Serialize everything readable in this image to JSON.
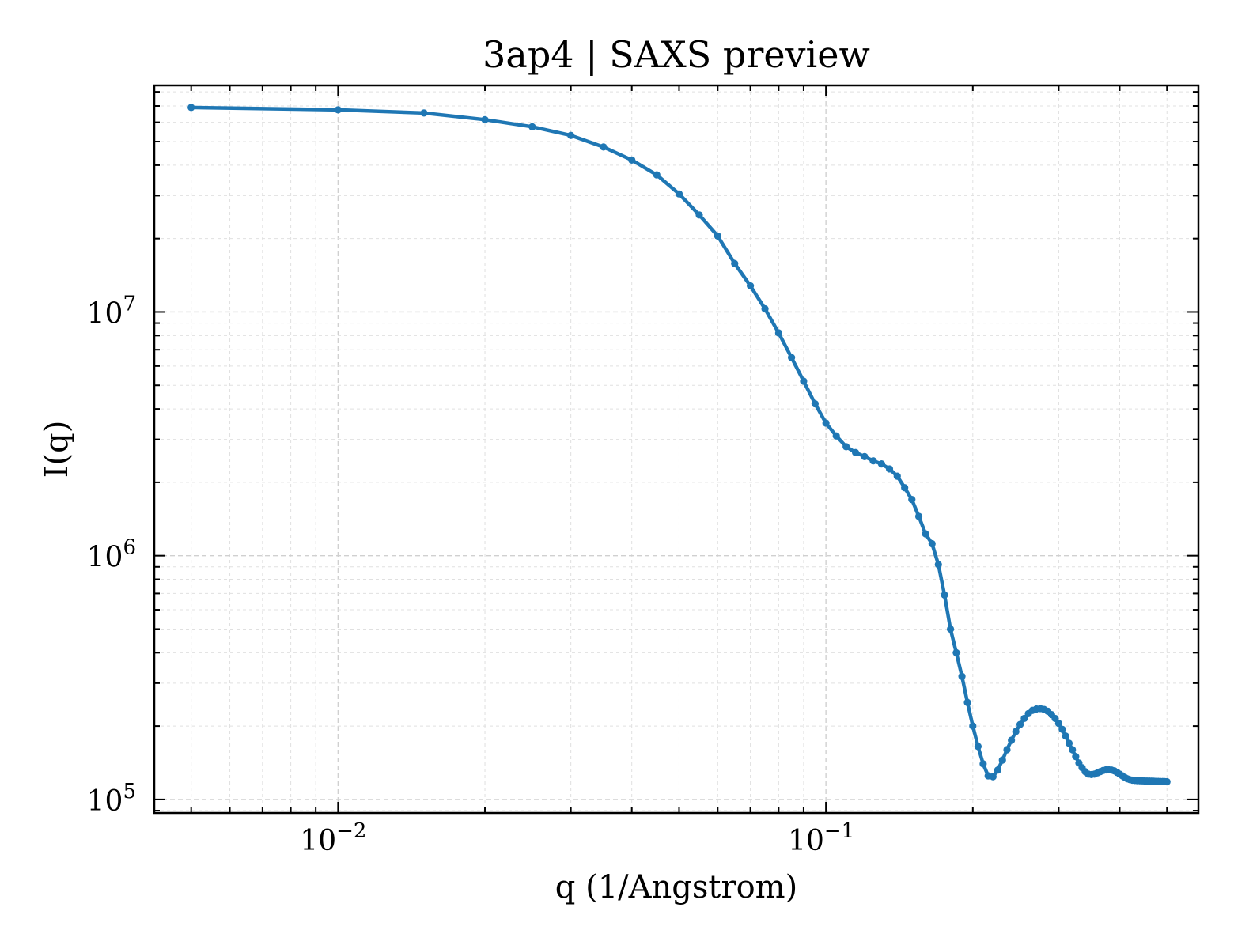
{
  "chart_data": {
    "type": "line",
    "title": "3ap4 | SAXS preview",
    "xlabel": "q (1/Angstrom)",
    "ylabel": "I(q)",
    "xscale": "log",
    "yscale": "log",
    "xlim": [
      0.0042,
      0.58
    ],
    "ylim": [
      88000,
      85000000
    ],
    "grid": true,
    "x_ticks": [
      {
        "value": 0.01,
        "base": "10",
        "exp": "−2"
      },
      {
        "value": 0.1,
        "base": "10",
        "exp": "−1"
      }
    ],
    "y_ticks": [
      {
        "value": 100000,
        "base": "10",
        "exp": "5"
      },
      {
        "value": 1000000,
        "base": "10",
        "exp": "6"
      },
      {
        "value": 10000000,
        "base": "10",
        "exp": "7"
      }
    ],
    "series": [
      {
        "color": "#1f77b4",
        "marker": "circle",
        "x": [
          0.005,
          0.01,
          0.015,
          0.02,
          0.025,
          0.03,
          0.035,
          0.04,
          0.045,
          0.05,
          0.055,
          0.06,
          0.065,
          0.07,
          0.075,
          0.08,
          0.085,
          0.09,
          0.095,
          0.1,
          0.105,
          0.11,
          0.115,
          0.12,
          0.125,
          0.13,
          0.135,
          0.14,
          0.145,
          0.15,
          0.155,
          0.16,
          0.165,
          0.17,
          0.175,
          0.18,
          0.185,
          0.19,
          0.195,
          0.2,
          0.205,
          0.21,
          0.215,
          0.22,
          0.225,
          0.23,
          0.235,
          0.24,
          0.245,
          0.25,
          0.255,
          0.26,
          0.265,
          0.27,
          0.275,
          0.28,
          0.285,
          0.29,
          0.295,
          0.3,
          0.305,
          0.31,
          0.315,
          0.32,
          0.325,
          0.33,
          0.335,
          0.34,
          0.345,
          0.35,
          0.355,
          0.36,
          0.365,
          0.37,
          0.375,
          0.38,
          0.385,
          0.39,
          0.395,
          0.4,
          0.405,
          0.41,
          0.415,
          0.42,
          0.425,
          0.43,
          0.435,
          0.44,
          0.445,
          0.45,
          0.455,
          0.46,
          0.465,
          0.47,
          0.475,
          0.48,
          0.485,
          0.49,
          0.495,
          0.5
        ],
        "y": [
          69000000,
          67500000,
          65500000,
          61500000,
          57500000,
          53000000,
          47500000,
          42000000,
          36500000,
          30500000,
          25000000,
          20500000,
          15800000,
          12800000,
          10300000,
          8200000,
          6500000,
          5200000,
          4200000,
          3500000,
          3100000,
          2800000,
          2650000,
          2550000,
          2450000,
          2380000,
          2270000,
          2120000,
          1900000,
          1700000,
          1450000,
          1230000,
          1120000,
          920000,
          690000,
          500000,
          400000,
          320000,
          250000,
          200000,
          165000,
          140000,
          125000,
          124000,
          132000,
          145000,
          160000,
          175000,
          190000,
          203000,
          215000,
          225000,
          232000,
          235000,
          236000,
          234000,
          230000,
          223000,
          215000,
          205000,
          194000,
          182000,
          170000,
          160000,
          150000,
          141000,
          135000,
          130000,
          127000,
          126500,
          127000,
          128500,
          130000,
          131500,
          132200,
          132400,
          132000,
          131000,
          129000,
          127000,
          125000,
          123000,
          121500,
          120500,
          120000,
          119600,
          119400,
          119300,
          119200,
          119100,
          119050,
          119000,
          118900,
          118800,
          118700,
          118600,
          118500,
          118400,
          118300,
          118200
        ]
      }
    ]
  }
}
